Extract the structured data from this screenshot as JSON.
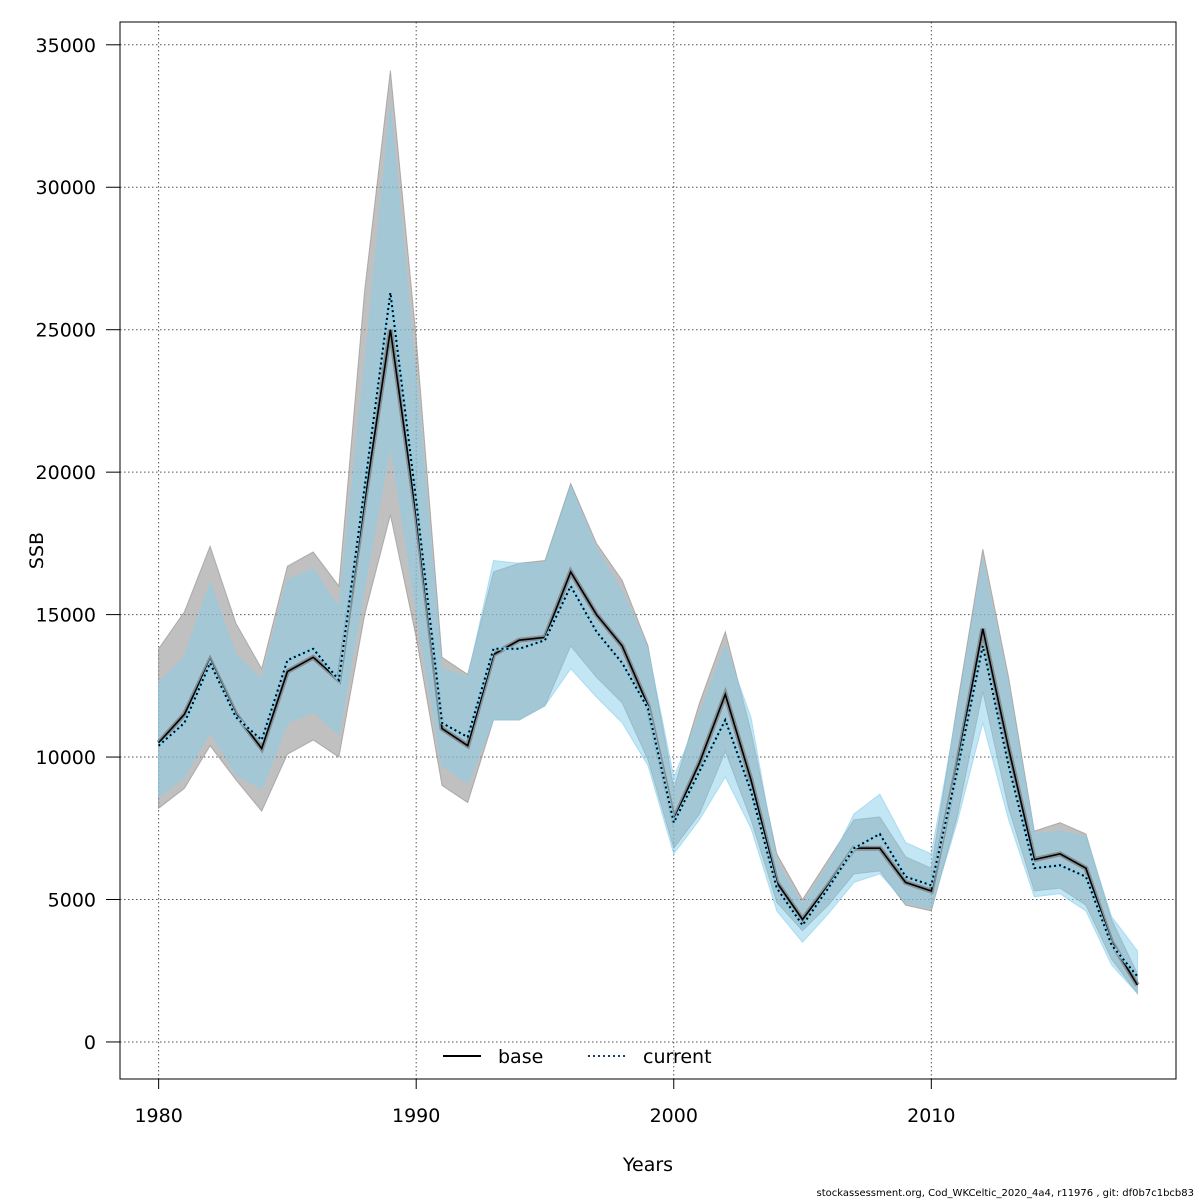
{
  "chart_data": {
    "type": "line",
    "xlabel": "Years",
    "ylabel": "SSB",
    "xlim": [
      1978.5,
      2019.5
    ],
    "ylim": [
      -1300,
      35800
    ],
    "xticks": [
      1980,
      1990,
      2000,
      2010
    ],
    "yticks": [
      0,
      5000,
      10000,
      15000,
      20000,
      25000,
      30000,
      35000
    ],
    "grid": true,
    "legend_position": "bottom-center",
    "colors": {
      "base_line": "#000000",
      "base_band": "#8c8c8c",
      "current_line": "#1a3a7a",
      "current_band": "#87ceeb"
    },
    "x": [
      1980,
      1981,
      1982,
      1983,
      1984,
      1985,
      1986,
      1987,
      1988,
      1989,
      1990,
      1991,
      1992,
      1993,
      1994,
      1995,
      1996,
      1997,
      1998,
      1999,
      2000,
      2001,
      2002,
      2003,
      2004,
      2005,
      2006,
      2007,
      2008,
      2009,
      2010,
      2011,
      2012,
      2013,
      2014,
      2015,
      2016,
      2017,
      2018
    ],
    "series": [
      {
        "name": "base",
        "style": "solid",
        "values": [
          10500,
          11500,
          13400,
          11500,
          10300,
          13000,
          13500,
          12700,
          19000,
          25000,
          18500,
          11000,
          10400,
          13600,
          14100,
          14200,
          16500,
          15000,
          13900,
          11800,
          7800,
          9800,
          12200,
          9200,
          5600,
          4300,
          5500,
          6800,
          6800,
          5600,
          5300,
          9700,
          14500,
          10300,
          6400,
          6600,
          6100,
          3500,
          2000
        ],
        "lower": [
          8200,
          8900,
          10400,
          9200,
          8100,
          10100,
          10600,
          10000,
          15000,
          18500,
          14200,
          9000,
          8400,
          11300,
          11300,
          11800,
          13900,
          12800,
          11900,
          9900,
          6800,
          8000,
          10200,
          7800,
          4900,
          3900,
          4800,
          5900,
          6000,
          4800,
          4600,
          7900,
          12300,
          8200,
          5300,
          5400,
          4800,
          2900,
          1700
        ],
        "upper": [
          13800,
          15100,
          17400,
          14700,
          13100,
          16700,
          17200,
          16000,
          26400,
          34100,
          24700,
          13500,
          12900,
          16500,
          16800,
          16900,
          19600,
          17500,
          16200,
          13900,
          8900,
          11900,
          14400,
          10900,
          6600,
          5000,
          6400,
          7800,
          7900,
          6500,
          6100,
          11800,
          17300,
          12800,
          7400,
          7700,
          7300,
          4300,
          2400
        ]
      },
      {
        "name": "current",
        "style": "dotted",
        "values": [
          10400,
          11200,
          13300,
          11400,
          10600,
          13400,
          13800,
          12700,
          19500,
          26300,
          19000,
          11200,
          10700,
          13800,
          13800,
          14100,
          16000,
          14400,
          13300,
          11700,
          7700,
          9500,
          11300,
          8800,
          5400,
          4100,
          5400,
          6800,
          7300,
          5800,
          5500,
          9500,
          13900,
          9700,
          6100,
          6200,
          5800,
          3400,
          2300
        ],
        "lower": [
          8600,
          9300,
          10900,
          9400,
          8900,
          11200,
          11600,
          10800,
          16000,
          21000,
          15200,
          9700,
          9100,
          11300,
          11300,
          11800,
          13100,
          12100,
          11200,
          9700,
          6600,
          7800,
          9300,
          7500,
          4600,
          3500,
          4500,
          5600,
          5900,
          4900,
          4700,
          7700,
          11200,
          7800,
          5100,
          5200,
          4600,
          2700,
          1700
        ],
        "upper": [
          12600,
          13500,
          16100,
          13600,
          12700,
          16200,
          16600,
          15200,
          23700,
          32800,
          23200,
          13100,
          12800,
          16900,
          16800,
          16800,
          19500,
          17300,
          15800,
          13800,
          9300,
          11500,
          13900,
          11400,
          6300,
          4800,
          6200,
          8000,
          8700,
          7000,
          6600,
          11600,
          16900,
          12500,
          7300,
          7400,
          7200,
          4400,
          3200
        ]
      }
    ]
  },
  "footnote": "stockassessment.org, Cod_WKCeltic_2020_4a4, r11976 , git: df0b7c1bcb83"
}
